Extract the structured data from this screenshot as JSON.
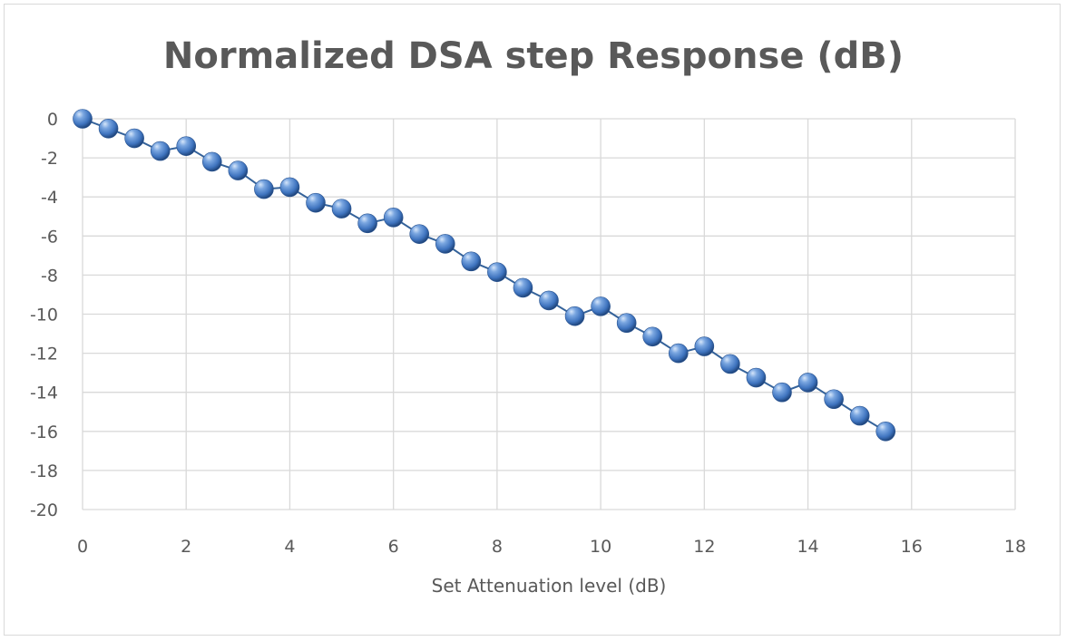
{
  "chart_data": {
    "type": "line",
    "title": "Normalized DSA step Response (dB)",
    "xlabel": "Set Attenuation level (dB)",
    "ylabel": "",
    "xlim": [
      0,
      18
    ],
    "ylim": [
      -20,
      0
    ],
    "x_ticks": [
      0,
      2,
      4,
      6,
      8,
      10,
      12,
      14,
      16,
      18
    ],
    "y_ticks": [
      0,
      -2,
      -4,
      -6,
      -8,
      -10,
      -12,
      -14,
      -16,
      -18,
      -20
    ],
    "x_tick_labels": [
      "0",
      "2",
      "4",
      "6",
      "8",
      "10",
      "12",
      "14",
      "16",
      "18"
    ],
    "y_tick_labels": [
      "0",
      "-2",
      "-4",
      "-6",
      "-8",
      "-10",
      "-12",
      "-14",
      "-16",
      "-18",
      "-20"
    ],
    "grid": true,
    "legend": "none",
    "marker": "sphere",
    "colors": {
      "line": "#34629a",
      "marker_light": "#aecbf0",
      "marker_mid": "#4a7fc8",
      "marker_dark": "#1b3f73",
      "grid": "#d9d9d9",
      "text": "#595959"
    },
    "x": [
      0,
      0.5,
      1,
      1.5,
      2,
      2.5,
      3,
      3.5,
      4,
      4.5,
      5,
      5.5,
      6,
      6.5,
      7,
      7.5,
      8,
      8.5,
      9,
      9.5,
      10,
      10.5,
      11,
      11.5,
      12,
      12.5,
      13,
      13.5,
      14,
      14.5,
      15,
      15.5
    ],
    "series": [
      {
        "values": [
          0,
          -0.5,
          -1.0,
          -1.65,
          -1.4,
          -2.2,
          -2.65,
          -3.6,
          -3.5,
          -4.3,
          -4.6,
          -5.35,
          -5.05,
          -5.9,
          -6.4,
          -7.3,
          -7.85,
          -8.65,
          -9.3,
          -10.1,
          -9.6,
          -10.45,
          -11.15,
          -12.0,
          -11.65,
          -12.55,
          -13.25,
          -14.0,
          -13.5,
          -14.35,
          -15.2,
          -16.0
        ]
      }
    ]
  }
}
